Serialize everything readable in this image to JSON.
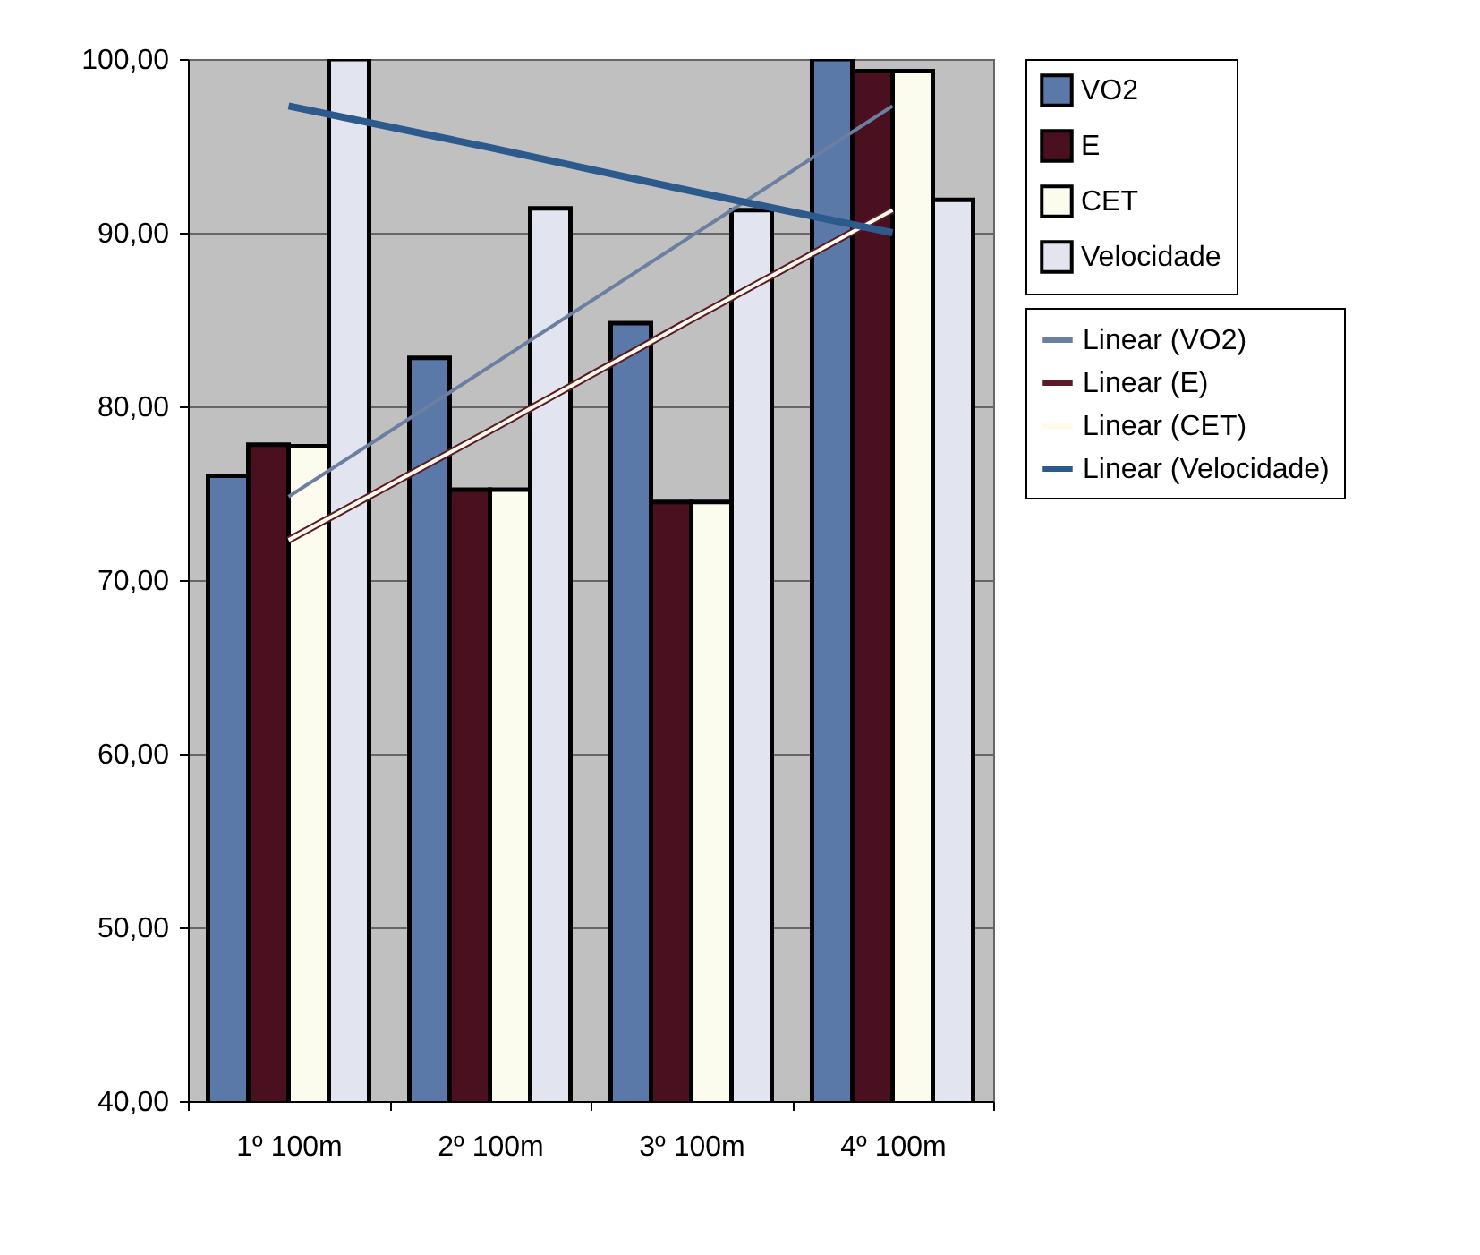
{
  "chart_data": {
    "type": "bar",
    "categories": [
      "1º 100m",
      "2º 100m",
      "3º 100m",
      "4º 100m"
    ],
    "series": [
      {
        "name": "VO2",
        "color": "#5a78a8",
        "values": [
          76.0,
          82.8,
          84.8,
          100.0
        ]
      },
      {
        "name": "E",
        "color": "#4a1020",
        "values": [
          77.8,
          75.2,
          74.5,
          99.3
        ]
      },
      {
        "name": "CET",
        "color": "#fbfbee",
        "values": [
          77.7,
          75.2,
          74.5,
          99.3
        ]
      },
      {
        "name": "Velocidade",
        "color": "#e2e4f0",
        "values": [
          100.0,
          91.4,
          91.3,
          91.9
        ]
      },
      {
        "name": "Linear (VO2)",
        "type": "line",
        "color": "#6c7fa0",
        "values": [
          74.8,
          82.3,
          89.8,
          97.3
        ]
      },
      {
        "name": "Linear (E)",
        "type": "line",
        "color": "#5a1a28",
        "values": [
          72.3,
          78.6,
          85.0,
          91.3
        ]
      },
      {
        "name": "Linear (CET)",
        "type": "line",
        "color": "#fffbe8",
        "values": [
          72.3,
          78.6,
          85.0,
          91.3
        ]
      },
      {
        "name": "Linear (Velocidade)",
        "type": "line",
        "color": "#2d5a8c",
        "values": [
          97.3,
          94.9,
          92.4,
          90.0
        ]
      }
    ],
    "ylim": [
      40,
      100
    ],
    "yticks": [
      {
        "value": 40,
        "label": "40,00"
      },
      {
        "value": 50,
        "label": "50,00"
      },
      {
        "value": 60,
        "label": "60,00"
      },
      {
        "value": 70,
        "label": "70,00"
      },
      {
        "value": 80,
        "label": "80,00"
      },
      {
        "value": 90,
        "label": "90,00"
      },
      {
        "value": 100,
        "label": "100,00"
      }
    ],
    "grid": "y",
    "legend": "right",
    "line_style": "solid",
    "marker": "none"
  }
}
